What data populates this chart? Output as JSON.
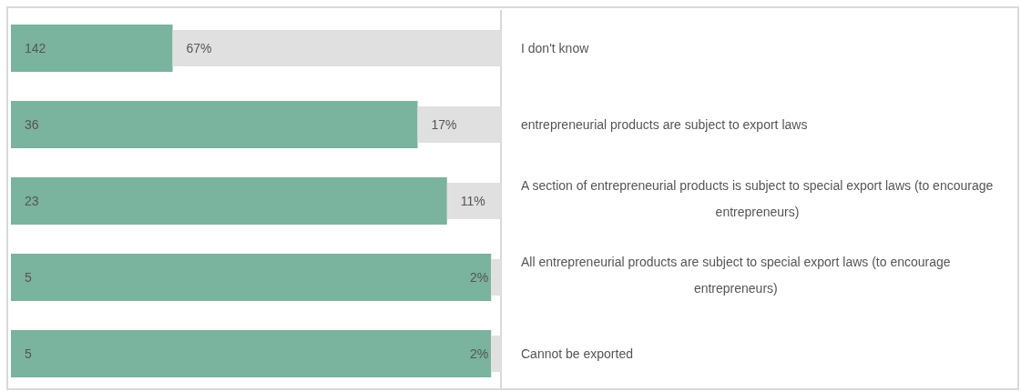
{
  "chart_data": {
    "type": "bar",
    "orientation": "horizontal",
    "stacked": true,
    "categories": [
      "I don't know",
      "entrepreneurial products are subject to export laws",
      "A section of entrepreneurial products is subject to special export laws (to encourage entrepreneurs)",
      "All entrepreneurial products are subject to special export laws (to encourage entrepreneurs)",
      "Cannot be exported"
    ],
    "xlim": [
      0,
      100
    ],
    "tick_labels": "y",
    "series": [
      {
        "color": "#7ab39e",
        "values": [
          33,
          83,
          89,
          98,
          98
        ]
      },
      {
        "color": "#e0e0e0",
        "values": [
          67,
          17,
          11,
          2,
          2
        ],
        "value_labels": [
          "67%",
          "17%",
          "11%",
          "2%",
          "2%"
        ]
      }
    ],
    "annotations": [
      "142",
      "36",
      "23",
      "5",
      "5"
    ]
  }
}
